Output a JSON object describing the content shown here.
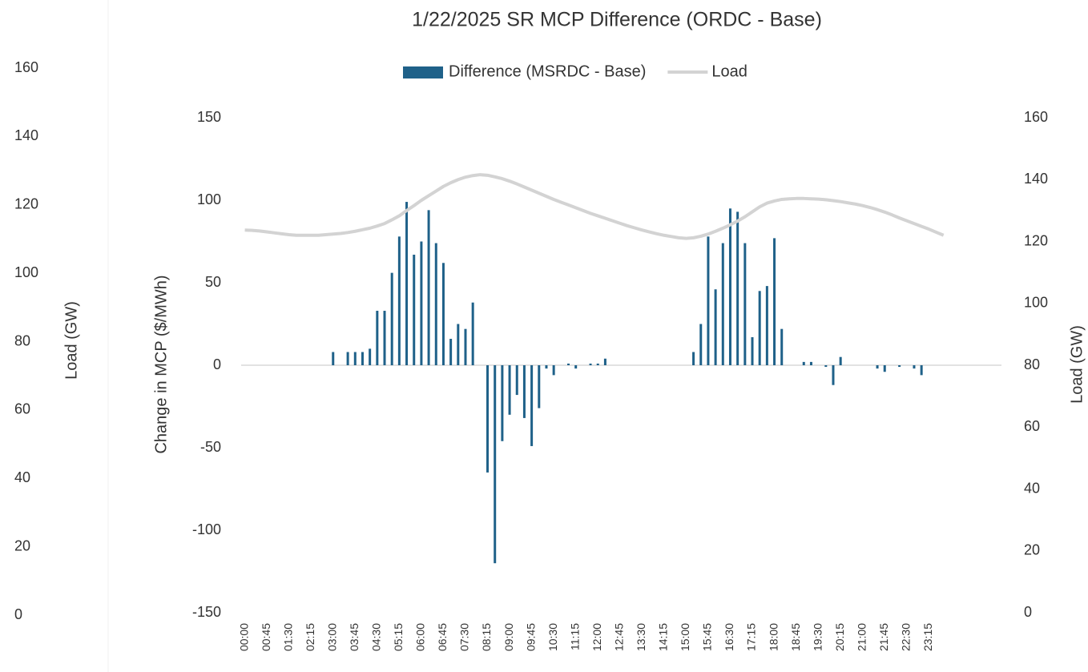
{
  "chart_data": [
    {
      "type": "bar-line",
      "title": "1/22/2025  SR MCP Difference (ORDC - Base)",
      "y_label": "Change in MCP ($/MWh)",
      "y2_label": "Load (GW)",
      "categories": [
        "00:00",
        null,
        null,
        "00:45",
        null,
        null,
        "01:30",
        null,
        null,
        "02:15",
        null,
        null,
        "03:00",
        null,
        null,
        "03:45",
        null,
        null,
        "04:30",
        null,
        null,
        "05:15",
        null,
        null,
        "06:00",
        null,
        null,
        "06:45",
        null,
        null,
        "07:30",
        null,
        null,
        "08:15",
        null,
        null,
        "09:00",
        null,
        null,
        "09:45",
        null,
        null,
        "10:30",
        null,
        null,
        "11:15",
        null,
        null,
        "12:00",
        null,
        null,
        "12:45",
        null,
        null,
        "13:30",
        null,
        null,
        "14:15",
        null,
        null,
        "15:00",
        null,
        null,
        "15:45",
        null,
        null,
        "16:30",
        null,
        null,
        "17:15",
        null,
        null,
        "18:00",
        null,
        null,
        "18:45",
        null,
        null,
        "19:30",
        null,
        null,
        "20:15",
        null,
        null,
        "21:00",
        null,
        null,
        "21:45",
        null,
        null,
        "22:30",
        null,
        null,
        "23:15",
        null,
        null
      ],
      "series": [
        {
          "name": "Difference (MSRDC - Base)",
          "color": "#1f6189",
          "type": "bar",
          "values": [
            0,
            0,
            0,
            0,
            0,
            0,
            0,
            0,
            0,
            0,
            0,
            0,
            8,
            0,
            8,
            8,
            8,
            10,
            33,
            33,
            56,
            78,
            99,
            67,
            75,
            94,
            74,
            62,
            16,
            25,
            22,
            38,
            0,
            -65,
            -120,
            -46,
            -30,
            -18,
            -32,
            -49,
            -26,
            -2,
            -6,
            0,
            1,
            -2,
            0,
            1,
            1,
            4,
            0,
            0,
            0,
            0,
            0,
            0,
            0,
            0,
            0,
            0,
            0,
            8,
            25,
            78,
            46,
            74,
            95,
            93,
            74,
            17,
            45,
            48,
            77,
            22,
            0,
            0,
            2,
            2,
            0,
            -1,
            -12,
            5,
            0,
            0,
            0,
            0,
            -2,
            -4,
            0,
            -1,
            0,
            -2,
            -6,
            0,
            0,
            0
          ]
        },
        {
          "name": "Load",
          "color": "#d3d3d3",
          "type": "line",
          "axis": "y2",
          "values": [
            123.7,
            123.6,
            123.4,
            123.1,
            122.8,
            122.5,
            122.2,
            122,
            122,
            122,
            122,
            122.2,
            122.4,
            122.6,
            122.9,
            123.3,
            123.8,
            124.3,
            125,
            125.8,
            127,
            128.3,
            130,
            131.6,
            133.3,
            134.8,
            136.3,
            137.8,
            139,
            140,
            140.8,
            141.3,
            141.6,
            141.4,
            140.9,
            140.3,
            139.5,
            138.6,
            137.6,
            136.6,
            135.6,
            134.6,
            133.6,
            132.7,
            131.8,
            130.9,
            130,
            129.1,
            128.3,
            127.5,
            126.7,
            125.9,
            125.1,
            124.4,
            123.7,
            123.1,
            122.5,
            122,
            121.6,
            121.2,
            121,
            121.2,
            121.7,
            122.4,
            123.3,
            124.3,
            125.4,
            126.6,
            128,
            129.6,
            131.2,
            132.4,
            133.1,
            133.6,
            133.8,
            133.9,
            133.9,
            133.8,
            133.7,
            133.5,
            133.2,
            132.9,
            132.5,
            132.1,
            131.6,
            131,
            130.3,
            129.5,
            128.6,
            127.6,
            126.7,
            125.8,
            124.9,
            124,
            123,
            122
          ]
        }
      ],
      "ylim": [
        -150,
        150
      ],
      "yticks": [
        -150,
        -100,
        -50,
        0,
        50,
        100,
        150
      ],
      "y2lim": [
        0,
        160
      ],
      "y2ticks": [
        0,
        20,
        40,
        60,
        80,
        100,
        120,
        140,
        160
      ],
      "grid": false,
      "legend": "top"
    },
    {
      "type": "axis",
      "y_label": "Load (GW)",
      "ylim": [
        0,
        160
      ],
      "yticks": [
        0,
        20,
        40,
        60,
        80,
        100,
        120,
        140,
        160
      ]
    }
  ]
}
